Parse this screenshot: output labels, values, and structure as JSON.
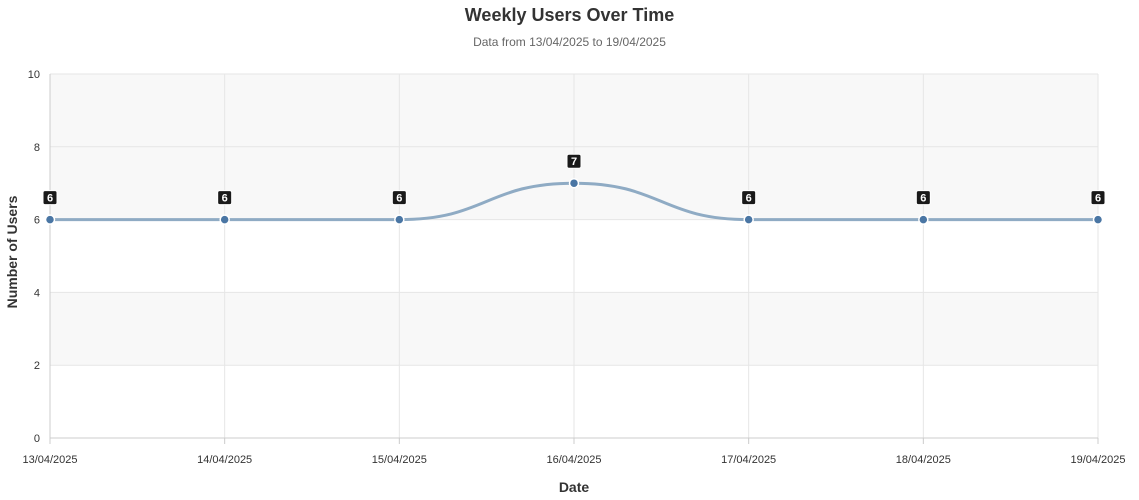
{
  "chart_data": {
    "type": "line",
    "title": "Weekly Users Over Time",
    "subtitle": "Data from 13/04/2025 to 19/04/2025",
    "xlabel": "Date",
    "ylabel": "Number of Users",
    "categories": [
      "13/04/2025",
      "14/04/2025",
      "15/04/2025",
      "16/04/2025",
      "17/04/2025",
      "18/04/2025",
      "19/04/2025"
    ],
    "series": [
      {
        "values": [
          6,
          6,
          6,
          7,
          6,
          6,
          6
        ]
      }
    ],
    "ylim": [
      0,
      10
    ],
    "yticks": [
      0,
      2,
      4,
      6,
      8,
      10
    ],
    "grid": true,
    "alternating_bands": true,
    "data_labels": true,
    "smooth": true,
    "colors": {
      "line": "#8fabc4",
      "point": "#4a76a4",
      "label_bg": "#1a1a1a",
      "label_text": "#ffffff",
      "band": "#f8f8f8",
      "grid": "#e6e6e6",
      "axis": "#cccccc"
    },
    "legend": "none"
  }
}
